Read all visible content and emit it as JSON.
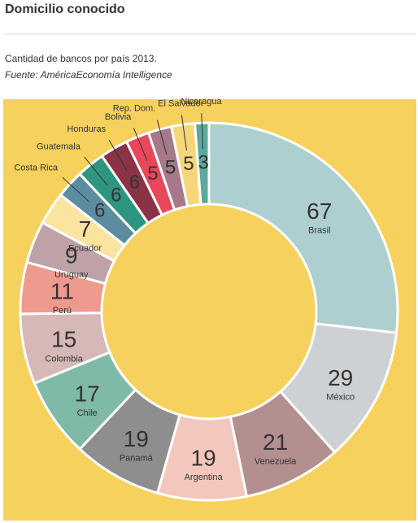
{
  "chart_data": {
    "type": "donut",
    "title": "Domicilio conocido",
    "subtitle": "Cantidad de bancos por país 2013.",
    "source": "Fuente: AméricaEconomía Intelligence",
    "categories": [
      "Brasil",
      "México",
      "Venezuela",
      "Argentina",
      "Panamá",
      "Chile",
      "Colombia",
      "Perú",
      "Uruguay",
      "Ecuador",
      "Costa Rica",
      "Guatemala",
      "Honduras",
      "Bolivia",
      "Rep. Dom.",
      "El Salvador",
      "Nicaragua"
    ],
    "values": [
      67,
      29,
      21,
      19,
      19,
      17,
      15,
      11,
      9,
      7,
      6,
      6,
      6,
      5,
      5,
      5,
      3
    ],
    "colors": [
      "#aecfcf",
      "#cdd1d3",
      "#b48f8f",
      "#f3c7bd",
      "#8e8e8e",
      "#7fb9a8",
      "#d6b8b6",
      "#ee9a8f",
      "#bfa2a8",
      "#fbe3a0",
      "#5c8ca0",
      "#2e9580",
      "#8a3346",
      "#e8485a",
      "#a6788a",
      "#f5d77a",
      "#5aa99c"
    ],
    "background": "#f7d15d"
  }
}
